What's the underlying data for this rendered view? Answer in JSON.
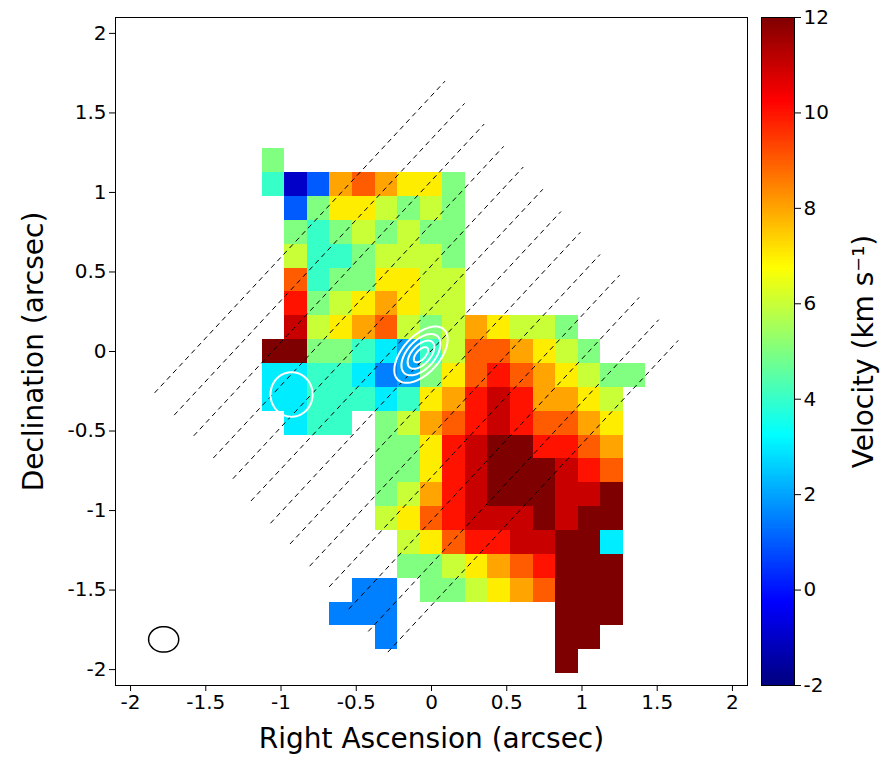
{
  "chart_data": {
    "type": "heatmap",
    "x_label": "Right Ascension (arcsec)",
    "y_label": "Declination (arcsec)",
    "xlim": [
      -2.1,
      2.1
    ],
    "ylim": [
      -2.1,
      2.1
    ],
    "xticks": [
      -2,
      -1.5,
      -1,
      -0.5,
      0,
      0.5,
      1,
      1.5,
      2
    ],
    "yticks": [
      -2,
      -1.5,
      -1,
      -0.5,
      0,
      0.5,
      1,
      1.5,
      2
    ],
    "x": [
      -1.2,
      -1.05,
      -0.9,
      -0.75,
      -0.6,
      -0.45,
      -0.3,
      -0.15,
      0,
      0.15,
      0.3,
      0.45,
      0.6,
      0.75,
      0.9,
      1.05,
      1.2,
      1.35
    ],
    "y": [
      1.2,
      1.05,
      0.9,
      0.75,
      0.6,
      0.45,
      0.3,
      0.15,
      0,
      -0.15,
      -0.3,
      -0.45,
      -0.6,
      -0.75,
      -0.9,
      -1.05,
      -1.2,
      -1.35,
      -1.5,
      -1.65,
      -1.8,
      -1.95
    ],
    "values": [
      [
        null,
        5,
        null,
        null,
        null,
        null,
        null,
        null,
        null,
        null,
        null,
        null,
        null,
        null,
        null,
        null,
        null,
        null
      ],
      [
        null,
        4,
        -1,
        1,
        8,
        9,
        8,
        7,
        7,
        5,
        null,
        null,
        null,
        null,
        null,
        null,
        null,
        null
      ],
      [
        null,
        null,
        1,
        5,
        7,
        7,
        6,
        5,
        6,
        5,
        null,
        null,
        null,
        null,
        null,
        null,
        null,
        null
      ],
      [
        null,
        null,
        5,
        4,
        5,
        6,
        5,
        6,
        5,
        5,
        null,
        null,
        null,
        null,
        null,
        null,
        null,
        null
      ],
      [
        null,
        null,
        6,
        4,
        4,
        5,
        6,
        6,
        6,
        5,
        null,
        null,
        null,
        null,
        null,
        null,
        null,
        null
      ],
      [
        null,
        null,
        9,
        4,
        5,
        5,
        7,
        7,
        6,
        6,
        null,
        null,
        null,
        null,
        null,
        null,
        null,
        null
      ],
      [
        null,
        null,
        10,
        5,
        6,
        7,
        8,
        7,
        6,
        6,
        null,
        null,
        null,
        null,
        null,
        null,
        null,
        null
      ],
      [
        null,
        null,
        11,
        6,
        7,
        8,
        9,
        6,
        5,
        6,
        8,
        7,
        6,
        6,
        5,
        null,
        null,
        null
      ],
      [
        null,
        12,
        12,
        5,
        5,
        4,
        3,
        2,
        4,
        6,
        9,
        9,
        8,
        7,
        6,
        5,
        null,
        null
      ],
      [
        null,
        3,
        3,
        4,
        4,
        3,
        1.5,
        2,
        5,
        7,
        9,
        10,
        9,
        8,
        7,
        6,
        5,
        5
      ],
      [
        null,
        3,
        3,
        4,
        4,
        4,
        3,
        4,
        7,
        8,
        10,
        11,
        10,
        8,
        8,
        7,
        6,
        null
      ],
      [
        null,
        null,
        3,
        4,
        4,
        null,
        5,
        6,
        8,
        9,
        10,
        11,
        10,
        9,
        9,
        8,
        7,
        null
      ],
      [
        null,
        null,
        null,
        null,
        null,
        null,
        5,
        5,
        7,
        10,
        11,
        12,
        12,
        10,
        10,
        9,
        8,
        null
      ],
      [
        null,
        null,
        null,
        null,
        null,
        null,
        5,
        5,
        7,
        10,
        11,
        12,
        12,
        12,
        11,
        10,
        9,
        null
      ],
      [
        null,
        null,
        null,
        null,
        null,
        null,
        5,
        6,
        8,
        10,
        11,
        12,
        12,
        12,
        11,
        11,
        12,
        null
      ],
      [
        null,
        null,
        null,
        null,
        null,
        null,
        6,
        7,
        9,
        10,
        11,
        11,
        11,
        12,
        11,
        12,
        12,
        null
      ],
      [
        null,
        null,
        null,
        null,
        null,
        null,
        null,
        6,
        7,
        9,
        10,
        10,
        11,
        11,
        12,
        12,
        3,
        null
      ],
      [
        null,
        null,
        null,
        null,
        null,
        null,
        null,
        5,
        5,
        6,
        7,
        8,
        9,
        10,
        12,
        12,
        12,
        null
      ],
      [
        null,
        null,
        null,
        null,
        null,
        1.5,
        1.5,
        null,
        5,
        5,
        6,
        7,
        8,
        9,
        12,
        12,
        12,
        null
      ],
      [
        null,
        null,
        null,
        null,
        1.5,
        1.5,
        1.5,
        null,
        null,
        null,
        null,
        null,
        null,
        null,
        12,
        12,
        12,
        null
      ],
      [
        null,
        null,
        null,
        null,
        null,
        null,
        1.5,
        null,
        null,
        null,
        null,
        null,
        null,
        null,
        12,
        12,
        null,
        null
      ],
      [
        null,
        null,
        null,
        null,
        null,
        null,
        null,
        null,
        null,
        null,
        null,
        null,
        null,
        null,
        12,
        null,
        null,
        null
      ]
    ],
    "colorbar": {
      "label": "Velocity (km s⁻¹)",
      "range": [
        -2,
        12
      ],
      "ticks": [
        -2,
        0,
        2,
        4,
        6,
        8,
        10,
        12
      ]
    },
    "slits": {
      "color": "black",
      "line_style": "dashed",
      "segments": [
        {
          "x1": -1.84,
          "y1": -0.26,
          "x2": 0.09,
          "y2": 1.7
        },
        {
          "x1": -1.71,
          "y1": -0.4,
          "x2": 0.22,
          "y2": 1.56
        },
        {
          "x1": -1.58,
          "y1": -0.53,
          "x2": 0.35,
          "y2": 1.43
        },
        {
          "x1": -1.45,
          "y1": -0.67,
          "x2": 0.48,
          "y2": 1.29
        },
        {
          "x1": -1.32,
          "y1": -0.8,
          "x2": 0.61,
          "y2": 1.16
        },
        {
          "x1": -1.2,
          "y1": -0.94,
          "x2": 0.74,
          "y2": 1.02
        },
        {
          "x1": -1.07,
          "y1": -1.08,
          "x2": 0.86,
          "y2": 0.88
        },
        {
          "x1": -0.94,
          "y1": -1.21,
          "x2": 0.99,
          "y2": 0.75
        },
        {
          "x1": -0.81,
          "y1": -1.35,
          "x2": 1.12,
          "y2": 0.61
        },
        {
          "x1": -0.68,
          "y1": -1.48,
          "x2": 1.25,
          "y2": 0.48
        },
        {
          "x1": -0.55,
          "y1": -1.62,
          "x2": 1.38,
          "y2": 0.34
        },
        {
          "x1": -0.42,
          "y1": -1.76,
          "x2": 1.51,
          "y2": 0.2
        },
        {
          "x1": -0.29,
          "y1": -1.89,
          "x2": 1.64,
          "y2": 0.07
        }
      ]
    },
    "contours": {
      "color": "white",
      "ellipses": [
        {
          "x": -0.07,
          "y": -0.02,
          "a": 0.22,
          "b": 0.12,
          "angle": 45
        },
        {
          "x": -0.07,
          "y": -0.02,
          "a": 0.16,
          "b": 0.09,
          "angle": 45
        },
        {
          "x": -0.07,
          "y": -0.02,
          "a": 0.11,
          "b": 0.06,
          "angle": 45
        },
        {
          "x": -0.07,
          "y": -0.02,
          "a": 0.06,
          "b": 0.03,
          "angle": 45
        },
        {
          "x": -0.93,
          "y": -0.27,
          "a": 0.14,
          "b": 0.14,
          "angle": 0
        }
      ]
    },
    "beam": {
      "color": "black",
      "x": -1.78,
      "y": -1.81,
      "a": 0.1,
      "b": 0.08,
      "angle": 0
    }
  }
}
